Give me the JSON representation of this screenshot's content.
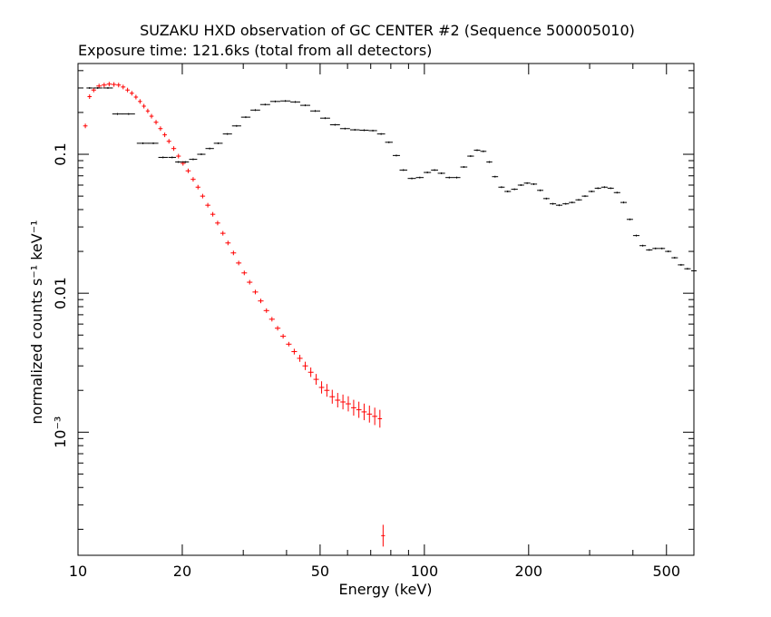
{
  "chart_data": {
    "type": "scatter",
    "title": "SUZAKU HXD observation of GC CENTER #2 (Sequence 500005010)",
    "subtitle": "Exposure time: 121.6ks (total from all detectors)",
    "xlabel": "Energy (keV)",
    "ylabel": "normalized counts s⁻¹ keV⁻¹",
    "x_scale": "log",
    "y_scale": "log",
    "xlim": [
      10,
      600
    ],
    "ylim": [
      0.00013,
      0.45
    ],
    "x_ticks": [
      {
        "value": 10,
        "label": "10"
      },
      {
        "value": 20,
        "label": "20"
      },
      {
        "value": 50,
        "label": "50"
      },
      {
        "value": 100,
        "label": "100"
      },
      {
        "value": 200,
        "label": "200"
      },
      {
        "value": 500,
        "label": "500"
      }
    ],
    "y_ticks": [
      {
        "value": 0.1,
        "label": "0.1"
      },
      {
        "value": 0.01,
        "label": "0.01"
      },
      {
        "value": 0.001,
        "label": "10⁻³"
      }
    ],
    "grid": false,
    "series": [
      {
        "color": "#ff0000",
        "points": [
          [
            10.5,
            0.16
          ],
          [
            10.8,
            0.26
          ],
          [
            11.1,
            0.29
          ],
          [
            11.5,
            0.31
          ],
          [
            11.9,
            0.315
          ],
          [
            12.3,
            0.32
          ],
          [
            12.7,
            0.318
          ],
          [
            13.1,
            0.315
          ],
          [
            13.5,
            0.305
          ],
          [
            13.9,
            0.29
          ],
          [
            14.3,
            0.275
          ],
          [
            14.7,
            0.258
          ],
          [
            15.1,
            0.24
          ],
          [
            15.5,
            0.222
          ],
          [
            15.9,
            0.205
          ],
          [
            16.3,
            0.188
          ],
          [
            16.8,
            0.17
          ],
          [
            17.3,
            0.153
          ],
          [
            17.8,
            0.138
          ],
          [
            18.3,
            0.124
          ],
          [
            18.9,
            0.11
          ],
          [
            19.5,
            0.097
          ],
          [
            20.1,
            0.086
          ],
          [
            20.8,
            0.076
          ],
          [
            21.5,
            0.066
          ],
          [
            22.2,
            0.058
          ],
          [
            22.9,
            0.05
          ],
          [
            23.7,
            0.043
          ],
          [
            24.5,
            0.037
          ],
          [
            25.3,
            0.032
          ],
          [
            26.2,
            0.027
          ],
          [
            27.1,
            0.023
          ],
          [
            28.1,
            0.0195
          ],
          [
            29.1,
            0.0165
          ],
          [
            30.2,
            0.014
          ],
          [
            31.3,
            0.012
          ],
          [
            32.5,
            0.0102
          ],
          [
            33.7,
            0.0088
          ],
          [
            35.0,
            0.0075
          ],
          [
            36.3,
            0.0065
          ],
          [
            37.7,
            0.0056
          ],
          [
            39.1,
            0.0049
          ],
          [
            40.6,
            0.0043
          ],
          [
            42.1,
            0.0038
          ],
          [
            43.7,
            0.0034
          ],
          [
            45.3,
            0.003
          ],
          [
            47.0,
            0.0027
          ],
          [
            48.7,
            0.0024
          ],
          [
            50.5,
            0.0021
          ],
          [
            52.3,
            0.002
          ],
          [
            54.2,
            0.0018
          ],
          [
            56.2,
            0.0017
          ],
          [
            58.2,
            0.00165
          ],
          [
            60.3,
            0.0016
          ],
          [
            62.5,
            0.0015
          ],
          [
            64.7,
            0.00145
          ],
          [
            67.0,
            0.0014
          ],
          [
            69.4,
            0.00135
          ],
          [
            71.9,
            0.0013
          ],
          [
            74.4,
            0.00125
          ],
          [
            76.0,
            0.00018
          ]
        ]
      },
      {
        "color": "#000000",
        "points": [
          [
            10.8,
            0.3
          ],
          [
            11.4,
            0.3
          ],
          [
            12.2,
            0.3
          ],
          [
            13.0,
            0.195
          ],
          [
            14.0,
            0.195
          ],
          [
            15.4,
            0.12
          ],
          [
            16.5,
            0.12
          ],
          [
            17.6,
            0.095
          ],
          [
            18.7,
            0.095
          ],
          [
            19.5,
            0.088
          ],
          [
            20.4,
            0.088
          ],
          [
            21.5,
            0.092
          ],
          [
            22.7,
            0.1
          ],
          [
            24.0,
            0.11
          ],
          [
            25.4,
            0.12
          ],
          [
            27.0,
            0.14
          ],
          [
            28.7,
            0.16
          ],
          [
            30.5,
            0.185
          ],
          [
            32.5,
            0.208
          ],
          [
            34.7,
            0.228
          ],
          [
            37.1,
            0.24
          ],
          [
            39.7,
            0.242
          ],
          [
            42.4,
            0.238
          ],
          [
            45.3,
            0.225
          ],
          [
            48.4,
            0.205
          ],
          [
            51.7,
            0.182
          ],
          [
            55.2,
            0.163
          ],
          [
            59.0,
            0.153
          ],
          [
            63.0,
            0.15
          ],
          [
            67.0,
            0.149
          ],
          [
            71.0,
            0.148
          ],
          [
            75.0,
            0.14
          ],
          [
            79.0,
            0.122
          ],
          [
            83.0,
            0.098
          ],
          [
            87.0,
            0.077
          ],
          [
            92.0,
            0.067
          ],
          [
            97.0,
            0.068
          ],
          [
            102.0,
            0.074
          ],
          [
            107.0,
            0.077
          ],
          [
            112.0,
            0.073
          ],
          [
            118.0,
            0.068
          ],
          [
            124.0,
            0.068
          ],
          [
            130.0,
            0.081
          ],
          [
            136.0,
            0.097
          ],
          [
            142.0,
            0.107
          ],
          [
            148.0,
            0.105
          ],
          [
            154.0,
            0.088
          ],
          [
            160.0,
            0.069
          ],
          [
            167.0,
            0.058
          ],
          [
            174.0,
            0.054
          ],
          [
            182.0,
            0.056
          ],
          [
            190.0,
            0.06
          ],
          [
            198.0,
            0.062
          ],
          [
            207.0,
            0.061
          ],
          [
            216.0,
            0.055
          ],
          [
            225.0,
            0.048
          ],
          [
            235.0,
            0.044
          ],
          [
            245.0,
            0.043
          ],
          [
            256.0,
            0.044
          ],
          [
            267.0,
            0.045
          ],
          [
            279.0,
            0.047
          ],
          [
            291.0,
            0.05
          ],
          [
            304.0,
            0.054
          ],
          [
            317.0,
            0.057
          ],
          [
            331.0,
            0.058
          ],
          [
            345.0,
            0.057
          ],
          [
            360.0,
            0.053
          ],
          [
            376.0,
            0.045
          ],
          [
            392.0,
            0.034
          ],
          [
            409.0,
            0.026
          ],
          [
            427.0,
            0.022
          ],
          [
            446.0,
            0.0205
          ],
          [
            465.0,
            0.021
          ],
          [
            485.0,
            0.021
          ],
          [
            506.0,
            0.02
          ],
          [
            528.0,
            0.018
          ],
          [
            551.0,
            0.016
          ],
          [
            575.0,
            0.015
          ],
          [
            600.0,
            0.0145
          ]
        ]
      }
    ]
  }
}
